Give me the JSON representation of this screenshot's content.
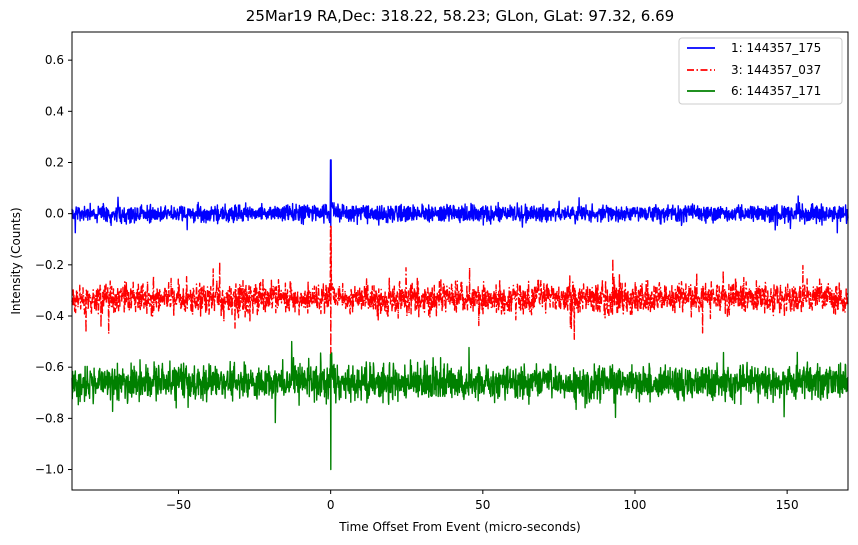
{
  "chart_data": {
    "type": "line",
    "title": "25Mar19 RA,Dec:  318.22,  58.23; GLon, GLat:   97.32,   6.69",
    "xlabel": "Time Offset From Event (micro-seconds)",
    "ylabel": "Intensity (Counts)",
    "xlim": [
      -85,
      170
    ],
    "ylim": [
      -1.08,
      0.71
    ],
    "xticks": [
      -50,
      0,
      50,
      100,
      150
    ],
    "xtick_labels": [
      "−50",
      "0",
      "50",
      "100",
      "150"
    ],
    "yticks": [
      -1.0,
      -0.8,
      -0.6,
      -0.4,
      -0.2,
      0.0,
      0.2,
      0.4,
      0.6
    ],
    "ytick_labels": [
      "−1.0",
      "−0.8",
      "−0.6",
      "−0.4",
      "−0.2",
      "0.0",
      "0.2",
      "0.4",
      "0.6"
    ],
    "grid": false,
    "legend_position": "top-right",
    "event_time": 0,
    "series": [
      {
        "name": "1: 144357_175",
        "color": "#0000ff",
        "style": "solid",
        "baseline": 0.0,
        "noise": 0.016,
        "spike_max": 0.21,
        "spike_min": -0.05,
        "spike_decay_max": 0.06,
        "seed": 7
      },
      {
        "name": "3: 144357_037",
        "color": "#ff0000",
        "style": "dashdot",
        "baseline": -0.33,
        "noise": 0.03,
        "spike_max": -0.05,
        "spike_min": -0.57,
        "spike_decay_max": -0.24,
        "seed": 23
      },
      {
        "name": "6: 144357_171",
        "color": "#008000",
        "style": "solid",
        "baseline": -0.66,
        "noise": 0.032,
        "spike_max": -0.55,
        "spike_min": -1.0,
        "spike_decay_max": -0.6,
        "seed": 41
      }
    ]
  }
}
